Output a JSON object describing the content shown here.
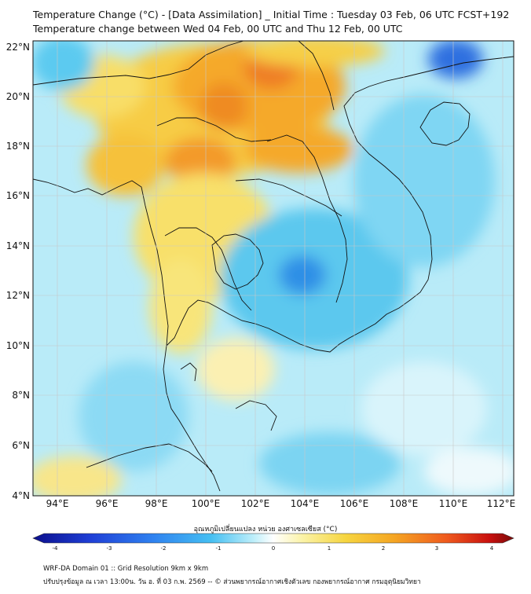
{
  "header": {
    "title_line1": "Temperature Change (°C) - [Data Assimilation] _ Initial Time : Tuesday 03 Feb, 06 UTC FCST+192",
    "title_line2": "Temperature change between Wed 04 Feb, 00 UTC and Thu 12 Feb, 00 UTC"
  },
  "axes": {
    "lat_labels": [
      "22°N",
      "20°N",
      "18°N",
      "16°N",
      "14°N",
      "12°N",
      "10°N",
      "8°N",
      "6°N",
      "4°N"
    ],
    "lon_labels": [
      "94°E",
      "96°E",
      "98°E",
      "100°E",
      "102°E",
      "104°E",
      "106°E",
      "108°E",
      "110°E",
      "112°E"
    ]
  },
  "colorbar": {
    "title": "อุณหภูมิเปลี่ยนแปลง หน่วย องศาเซลเซียส (°C)",
    "tick_labels": [
      "-4",
      "-3",
      "-2",
      "-1",
      "0",
      "1",
      "2",
      "3",
      "4"
    ],
    "colors": [
      "#0b0f8c",
      "#1f3fd6",
      "#2f82f0",
      "#45bff2",
      "#a8e6f7",
      "#ffffff",
      "#fbf3a8",
      "#f6d540",
      "#f5a623",
      "#ef5a1e",
      "#c8100e",
      "#7a0a0a"
    ]
  },
  "footer": {
    "line1": "WRF-DA Domain 01 :: Grid Resolution 9km x 9km",
    "line2": "ปรับปรุงข้อมูล ณ เวลา 13:00น. วัน อ. ที่ 03 ก.พ. 2569 -- © ส่วนพยากรณ์อากาศเชิงตัวเลข กองพยากรณ์อากาศ กรมอุตุนิยมวิทยา"
  }
}
